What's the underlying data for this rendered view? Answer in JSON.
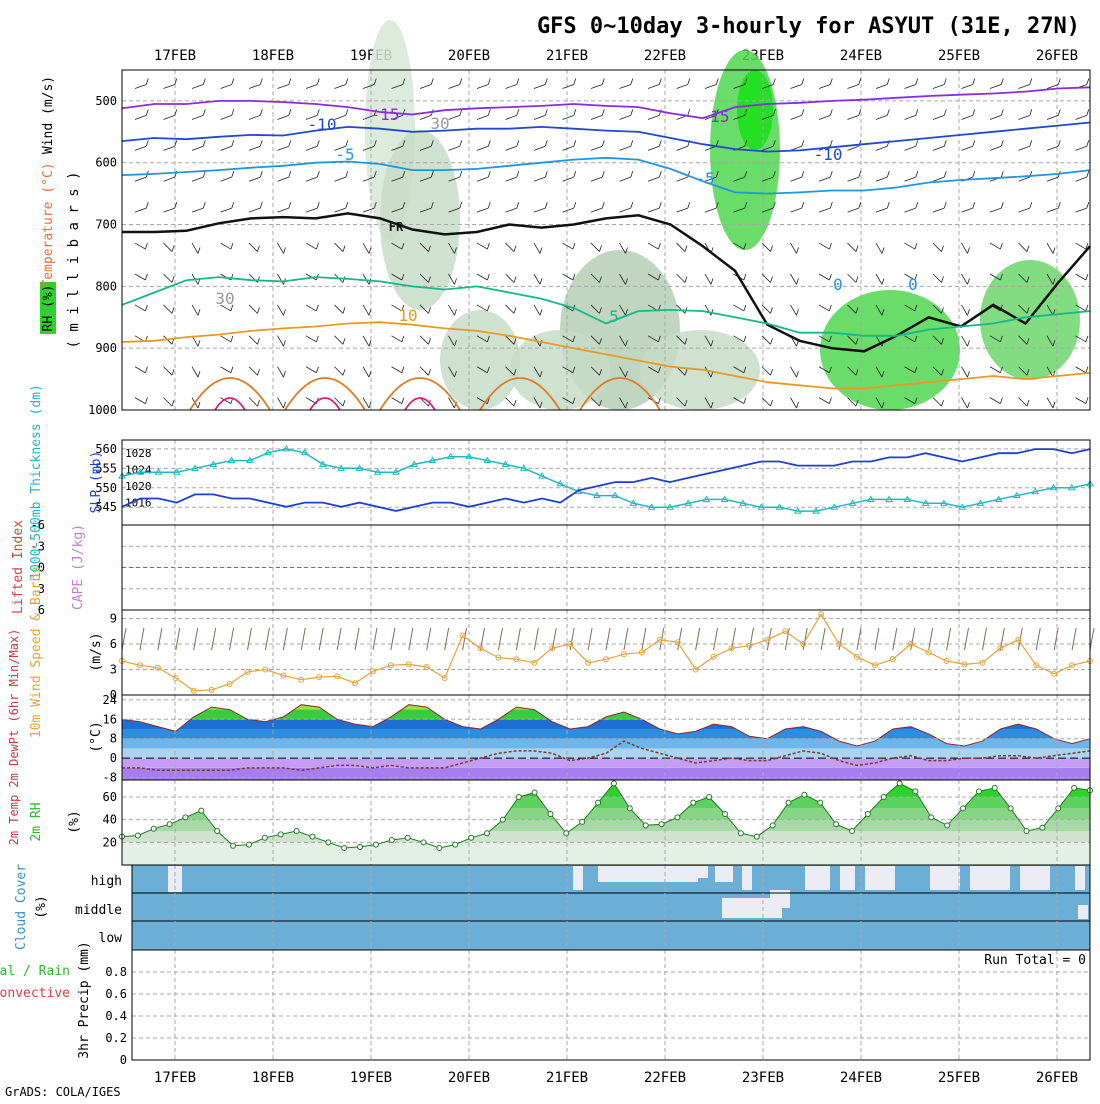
{
  "title": "GFS 0~10day 3-hourly for ASYUT (31E, 27N)",
  "footer": "GrADS: COLA/IGES",
  "colors": {
    "grid": "#a8a8a8",
    "rh_green": "#2bd42b",
    "thickness": "#22b7c4",
    "slp": "#1f3fd1",
    "wind10": "#e6a33a",
    "rh2m": "#2eb82e",
    "cloud": "#6baed6",
    "clear": "#ececf4",
    "lifted": "#e04040",
    "cape": "#c07ed8"
  },
  "chart_data": [
    {
      "id": "upper_air",
      "type": "heatmap",
      "legend": [
        "RH (%)",
        "Temperature (°C)",
        "Wind (m/s)"
      ],
      "ylabel": "( m i l l i b a r s )",
      "ylim": [
        1000,
        450
      ],
      "yticks": [
        "500",
        "600",
        "700",
        "800",
        "900",
        "1000"
      ],
      "contour_labels": [
        "-15",
        "-15",
        "-10",
        "-10",
        "-5",
        "-5",
        "FR",
        "0",
        "0",
        "5",
        "10",
        "30",
        "30"
      ],
      "contours": [
        {
          "level": -15,
          "color": "#8a2be2",
          "p": [
            512,
            505,
            505,
            500,
            500,
            502,
            505,
            510,
            518,
            522,
            515,
            512,
            510,
            508,
            505,
            508,
            510,
            520,
            528,
            510,
            505,
            503,
            500,
            498,
            495,
            492,
            490,
            488,
            485,
            480,
            478
          ]
        },
        {
          "level": -10,
          "color": "#2048d0",
          "p": [
            565,
            560,
            562,
            558,
            555,
            556,
            548,
            542,
            545,
            550,
            548,
            545,
            545,
            542,
            545,
            548,
            550,
            560,
            570,
            578,
            582,
            580,
            575,
            570,
            565,
            560,
            555,
            550,
            545,
            540,
            535
          ]
        },
        {
          "level": -5,
          "color": "#1e96e0",
          "p": [
            620,
            618,
            615,
            612,
            608,
            605,
            600,
            598,
            602,
            612,
            612,
            610,
            605,
            600,
            595,
            592,
            595,
            610,
            630,
            648,
            650,
            648,
            645,
            645,
            640,
            632,
            628,
            625,
            622,
            618,
            612
          ]
        },
        {
          "level": 0,
          "color": "#111111",
          "p": [
            712,
            712,
            710,
            698,
            690,
            688,
            690,
            682,
            690,
            708,
            716,
            712,
            700,
            705,
            700,
            690,
            685,
            700,
            735,
            775,
            862,
            888,
            900,
            905,
            880,
            850,
            865,
            830,
            860,
            795,
            735
          ]
        },
        {
          "level": 5,
          "color": "#16b887",
          "p": [
            830,
            810,
            790,
            785,
            790,
            792,
            785,
            788,
            792,
            800,
            805,
            800,
            810,
            820,
            835,
            860,
            840,
            838,
            840,
            850,
            860,
            875,
            875,
            880,
            880,
            870,
            865,
            860,
            850,
            845,
            840
          ]
        },
        {
          "level": 10,
          "color": "#e89a28",
          "p": [
            890,
            888,
            882,
            878,
            872,
            868,
            865,
            860,
            858,
            862,
            868,
            872,
            880,
            890,
            900,
            910,
            920,
            930,
            935,
            945,
            955,
            960,
            965,
            965,
            960,
            955,
            950,
            945,
            950,
            945,
            940
          ]
        }
      ]
    },
    {
      "id": "thickness_slp",
      "type": "line",
      "ylabel_left": "1000-500mb Thickness (dm)",
      "ylabel_right": "SLP (mb)",
      "yticks_left": [
        "560",
        "555",
        "550",
        "545"
      ],
      "yticks_right": [
        "1028",
        "1024",
        "1020",
        "1016"
      ],
      "series": [
        {
          "name": "1000-500mb Thickness (dm)",
          "axis": "left",
          "values": [
            553,
            554,
            554,
            554,
            555,
            556,
            557,
            557,
            559,
            560,
            559,
            556,
            555,
            555,
            554,
            554,
            556,
            557,
            558,
            558,
            557,
            556,
            555,
            553,
            551,
            549,
            548,
            548,
            546,
            545,
            545,
            546,
            547,
            547,
            546,
            545,
            545,
            544,
            544,
            545,
            546,
            547,
            547,
            547,
            546,
            546,
            545,
            546,
            547,
            548,
            549,
            550,
            550,
            551
          ]
        },
        {
          "name": "SLP (mb)",
          "axis": "right",
          "values": [
            1015,
            1017,
            1017,
            1016,
            1018,
            1018,
            1017,
            1017,
            1016,
            1015,
            1016,
            1016,
            1015,
            1016,
            1015,
            1014,
            1015,
            1016,
            1016,
            1015,
            1016,
            1017,
            1016,
            1017,
            1016,
            1019,
            1020,
            1021,
            1021,
            1022,
            1021,
            1022,
            1023,
            1024,
            1025,
            1026,
            1026,
            1025,
            1025,
            1025,
            1026,
            1026,
            1027,
            1027,
            1028,
            1027,
            1026,
            1027,
            1028,
            1028,
            1029,
            1029,
            1028,
            1029
          ]
        }
      ]
    },
    {
      "id": "lifted_cape",
      "type": "line",
      "ylabel_left": "Lifted Index",
      "ylabel_right": "CAPE (J/kg)",
      "yticks": [
        "-6",
        "-3",
        "0",
        "3",
        "6"
      ],
      "series": [
        {
          "name": "Lifted Index",
          "values": []
        }
      ]
    },
    {
      "id": "wind10m",
      "type": "line",
      "ylabel_left": "10m Wind Speed & Barbs",
      "ylabel_right": "(m/s)",
      "yticks": [
        "9",
        "6",
        "3",
        "0"
      ],
      "ylim": [
        0,
        10
      ],
      "series": [
        {
          "name": "10m Wind Speed",
          "values": [
            4.0,
            3.5,
            3.2,
            2.0,
            0.5,
            0.6,
            1.3,
            2.7,
            3.0,
            2.3,
            1.8,
            2.1,
            2.2,
            1.4,
            2.8,
            3.5,
            3.6,
            3.3,
            2.0,
            7.0,
            5.5,
            4.4,
            4.2,
            3.8,
            5.5,
            6.0,
            3.8,
            4.2,
            4.8,
            5.0,
            6.5,
            6.2,
            3.0,
            4.5,
            5.5,
            5.8,
            6.5,
            7.5,
            6.0,
            9.5,
            6.0,
            4.5,
            3.5,
            4.2,
            6.0,
            5.0,
            4.0,
            3.6,
            3.8,
            5.5,
            6.5,
            3.5,
            2.5,
            3.5,
            4.0
          ]
        }
      ]
    },
    {
      "id": "temp2m",
      "type": "area",
      "ylabel_left": "2m Temp 2m DewPt (6hr Min/Max)",
      "ylabel_right": "(°C)",
      "yticks": [
        "24",
        "16",
        "8",
        "0",
        "-8"
      ],
      "ylim": [
        -9,
        24
      ],
      "series": [
        {
          "name": "2m Temp",
          "values": [
            16,
            15,
            13,
            11,
            17,
            21,
            20,
            16,
            15,
            17,
            22,
            21,
            16,
            14,
            13,
            17,
            22,
            21,
            16,
            13,
            12,
            16,
            21,
            20,
            15,
            12,
            13,
            17,
            19,
            16,
            12,
            10,
            11,
            14,
            13,
            9,
            8,
            12,
            13,
            11,
            7,
            5,
            7,
            12,
            13,
            10,
            6,
            5,
            7,
            12,
            14,
            12,
            8,
            6,
            8
          ]
        },
        {
          "name": "2m DewPt",
          "values": [
            -4,
            -4,
            -5,
            -5,
            -5,
            -5,
            -5,
            -4,
            -4,
            -4,
            -5,
            -4,
            -3,
            -3,
            -4,
            -3,
            -4,
            -4,
            -4,
            -2,
            0,
            2,
            3,
            3,
            2,
            -1,
            0,
            2,
            7,
            4,
            2,
            0,
            -2,
            -1,
            0,
            -1,
            -1,
            1,
            3,
            2,
            -1,
            -3,
            -2,
            0,
            1,
            -1,
            -1,
            0,
            0,
            1,
            1,
            0,
            1,
            2,
            3
          ]
        }
      ]
    },
    {
      "id": "rh2m",
      "type": "area",
      "ylabel_left": "2m RH",
      "ylabel_right": "(%)",
      "yticks": [
        "60",
        "40",
        "20"
      ],
      "ylim": [
        0,
        70
      ],
      "series": [
        {
          "name": "2m RH",
          "values": [
            25,
            26,
            32,
            36,
            42,
            48,
            30,
            17,
            18,
            24,
            27,
            30,
            25,
            20,
            15,
            16,
            18,
            22,
            24,
            20,
            15,
            18,
            24,
            28,
            40,
            60,
            64,
            45,
            28,
            38,
            55,
            72,
            50,
            35,
            36,
            42,
            55,
            60,
            45,
            28,
            25,
            35,
            55,
            62,
            55,
            36,
            30,
            45,
            60,
            72,
            65,
            42,
            35,
            50,
            65,
            68,
            50,
            30,
            33,
            50,
            68,
            66
          ]
        }
      ]
    },
    {
      "id": "cloud",
      "type": "heatmap",
      "ylabel_left": "Cloud Cover",
      "ylabel_right": "(%)",
      "rows": [
        "high",
        "middle",
        "low"
      ],
      "run_total": "Run Total = 0"
    },
    {
      "id": "precip",
      "type": "bar",
      "ylabel_left": "Total / Rain Convective",
      "ylabel_right": "3hr Precip (mm)",
      "yticks": [
        "0.8",
        "0.6",
        "0.4",
        "0.2",
        "0"
      ],
      "ylim": [
        0,
        1
      ],
      "values": []
    }
  ],
  "dates": [
    "17FEB",
    "18FEB",
    "19FEB",
    "20FEB",
    "21FEB",
    "22FEB",
    "23FEB",
    "24FEB",
    "25FEB",
    "26FEB"
  ]
}
